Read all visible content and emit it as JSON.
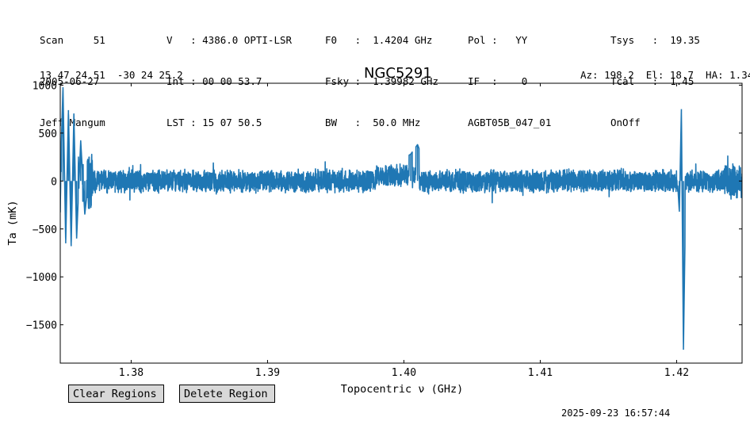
{
  "header": {
    "col1": [
      "Scan     51",
      "2005-06-27",
      "Jeff Mangum"
    ],
    "col2": [
      "V   : 4386.0 OPTI-LSR",
      "Int : 00 00 53.7",
      "LST : 15 07 50.5"
    ],
    "col3": [
      "F0   :  1.4204 GHz",
      "Fsky :  1.39982 GHz",
      "BW   :  50.0 MHz"
    ],
    "col4": [
      "Pol :   YY",
      "IF  :    0",
      "AGBT05B_047_01"
    ],
    "col5": [
      "Tsys   :  19.35",
      "Tcal   :  1.45",
      "OnOff"
    ],
    "coords": "13 47 24.51  -30 24 25.2",
    "azel": "Az: 198.2  El: 18.7  HA: 1.34"
  },
  "buttons": {
    "clear": "Clear Regions",
    "delete": "Delete Region"
  },
  "timestamp": "2025-09-23 16:57:44",
  "chart_data": {
    "type": "line",
    "title": "NGC5291",
    "xlabel": "Topocentric ν (GHz)",
    "ylabel": "Ta (mK)",
    "xlim": [
      1.3748,
      1.4248
    ],
    "ylim": [
      -1900,
      1020
    ],
    "xticks": [
      1.38,
      1.39,
      1.4,
      1.41,
      1.42
    ],
    "xtick_labels": [
      "1.38",
      "1.39",
      "1.40",
      "1.41",
      "1.42"
    ],
    "yticks": [
      1000,
      500,
      0,
      -500,
      -1000,
      -1500
    ],
    "ytick_labels": [
      "1000",
      "500",
      "0",
      "−500",
      "−1000",
      "−1500"
    ],
    "color": "#1f77b4",
    "grid": false,
    "series": [
      {
        "x": [
          1.3748,
          1.375,
          1.3752,
          1.3754,
          1.3756,
          1.3758,
          1.376,
          1.3763,
          1.3766,
          1.377,
          1.378,
          1.38,
          1.383,
          1.386,
          1.39,
          1.395,
          1.398,
          1.3995,
          1.4005,
          1.401,
          1.4015,
          1.403,
          1.406,
          1.41,
          1.415,
          1.42,
          1.4202,
          1.42035,
          1.4205,
          1.4207,
          1.422,
          1.424,
          1.4248
        ],
        "y": [
          0,
          980,
          -650,
          740,
          -680,
          700,
          -600,
          420,
          -350,
          200,
          -180,
          150,
          -150,
          140,
          -160,
          150,
          -150,
          190,
          280,
          380,
          200,
          -180,
          150,
          -150,
          -170,
          150,
          -320,
          750,
          -1760,
          200,
          -170,
          250,
          -200
        ],
        "noise": 130
      }
    ]
  }
}
